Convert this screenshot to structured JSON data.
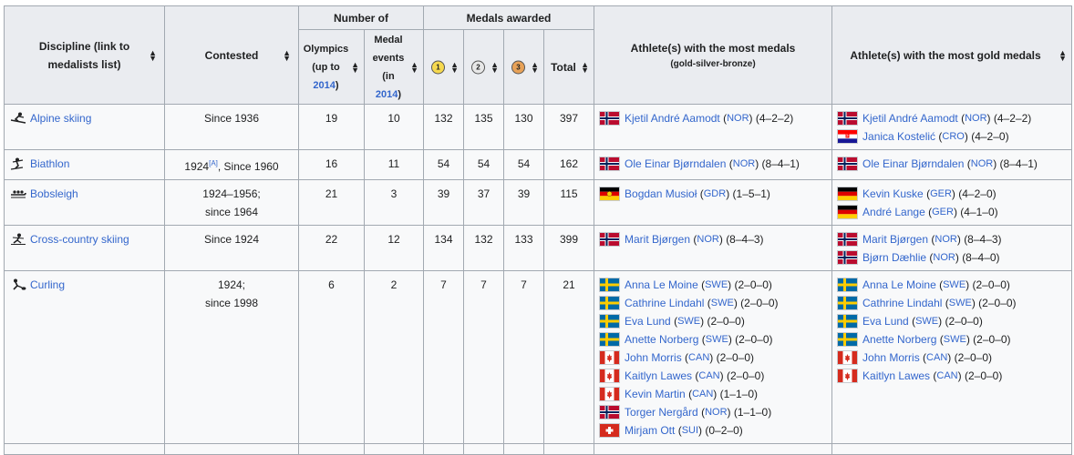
{
  "header": {
    "discipline": "Discipline (link to medalists list)",
    "contested": "Contested",
    "number_of": "Number of",
    "olympics_l1": "Olympics",
    "olympics_l2": "(up to",
    "olympics_year": "2014",
    "olympics_close": ")",
    "events_l1": "Medal",
    "events_l2": "events",
    "events_l3": "(in",
    "events_year": "2014",
    "events_close": ")",
    "medals_awarded": "Medals awarded",
    "gold_label": "1",
    "silver_label": "2",
    "bronze_label": "3",
    "total": "Total",
    "most_medals": "Athlete(s) with the most medals",
    "most_medals_sub": "(gold-silver-bronze)",
    "most_gold": "Athlete(s) with the most gold medals"
  },
  "rows": [
    {
      "discipline": "Alpine skiing",
      "pictogram": "alpine-skiing-pictogram",
      "contested": "Since 1936",
      "olympics": "19",
      "events": "10",
      "gold": "132",
      "silver": "135",
      "bronze": "130",
      "total": "397",
      "most_medals": [
        {
          "flag": "NOR",
          "name": "Kjetil André Aamodt",
          "noc": "NOR",
          "record": "(4–2–2)"
        }
      ],
      "most_gold": [
        {
          "flag": "NOR",
          "name": "Kjetil André Aamodt",
          "noc": "NOR",
          "record": "(4–2–2)"
        },
        {
          "flag": "CRO",
          "name": "Janica Kostelić",
          "noc": "CRO",
          "record": "(4–2–0)"
        }
      ]
    },
    {
      "discipline": "Biathlon",
      "pictogram": "biathlon-pictogram",
      "contested_pre": "1924",
      "contested_note": "[A]",
      "contested_post": ", Since 1960",
      "olympics": "16",
      "events": "11",
      "gold": "54",
      "silver": "54",
      "bronze": "54",
      "total": "162",
      "most_medals": [
        {
          "flag": "NOR",
          "name": "Ole Einar Bjørndalen",
          "noc": "NOR",
          "record": "(8–4–1)"
        }
      ],
      "most_gold": [
        {
          "flag": "NOR",
          "name": "Ole Einar Bjørndalen",
          "noc": "NOR",
          "record": "(8–4–1)"
        }
      ]
    },
    {
      "discipline": "Bobsleigh",
      "pictogram": "bobsleigh-pictogram",
      "contested_l1": "1924–1956;",
      "contested_l2": "since 1964",
      "olympics": "21",
      "events": "3",
      "gold": "39",
      "silver": "37",
      "bronze": "39",
      "total": "115",
      "most_medals": [
        {
          "flag": "GDR",
          "name": "Bogdan Musioł",
          "noc": "GDR",
          "record": "(1–5–1)"
        }
      ],
      "most_gold": [
        {
          "flag": "GER",
          "name": "Kevin Kuske",
          "noc": "GER",
          "record": "(4–2–0)"
        },
        {
          "flag": "GER",
          "name": "André Lange",
          "noc": "GER",
          "record": "(4–1–0)"
        }
      ]
    },
    {
      "discipline": "Cross-country skiing",
      "pictogram": "cross-country-skiing-pictogram",
      "contested": "Since 1924",
      "olympics": "22",
      "events": "12",
      "gold": "134",
      "silver": "132",
      "bronze": "133",
      "total": "399",
      "most_medals": [
        {
          "flag": "NOR",
          "name": "Marit Bjørgen",
          "noc": "NOR",
          "record": "(8–4–3)"
        }
      ],
      "most_gold": [
        {
          "flag": "NOR",
          "name": "Marit Bjørgen",
          "noc": "NOR",
          "record": "(8–4–3)"
        },
        {
          "flag": "NOR",
          "name": "Bjørn Dæhlie",
          "noc": "NOR",
          "record": "(8–4–0)"
        }
      ]
    },
    {
      "discipline": "Curling",
      "pictogram": "curling-pictogram",
      "contested_l1": "1924;",
      "contested_l2": "since 1998",
      "olympics": "6",
      "events": "2",
      "gold": "7",
      "silver": "7",
      "bronze": "7",
      "total": "21",
      "most_medals": [
        {
          "flag": "SWE",
          "name": "Anna Le Moine",
          "noc": "SWE",
          "record": "(2–0–0)"
        },
        {
          "flag": "SWE",
          "name": "Cathrine Lindahl",
          "noc": "SWE",
          "record": "(2–0–0)"
        },
        {
          "flag": "SWE",
          "name": "Eva Lund",
          "noc": "SWE",
          "record": "(2–0–0)"
        },
        {
          "flag": "SWE",
          "name": "Anette Norberg",
          "noc": "SWE",
          "record": "(2–0–0)"
        },
        {
          "flag": "CAN",
          "name": "John Morris",
          "noc": "CAN",
          "record": "(2–0–0)"
        },
        {
          "flag": "CAN",
          "name": "Kaitlyn Lawes",
          "noc": "CAN",
          "record": "(2–0–0)"
        },
        {
          "flag": "CAN",
          "name": "Kevin Martin",
          "noc": "CAN",
          "record": "(1–1–0)"
        },
        {
          "flag": "NOR",
          "name": "Torger Nergård",
          "noc": "NOR",
          "record": "(1–1–0)"
        },
        {
          "flag": "SUI",
          "name": "Mirjam Ott",
          "noc": "SUI",
          "record": "(0–2–0)"
        }
      ],
      "most_gold": [
        {
          "flag": "SWE",
          "name": "Anna Le Moine",
          "noc": "SWE",
          "record": "(2–0–0)"
        },
        {
          "flag": "SWE",
          "name": "Cathrine Lindahl",
          "noc": "SWE",
          "record": "(2–0–0)"
        },
        {
          "flag": "SWE",
          "name": "Eva Lund",
          "noc": "SWE",
          "record": "(2–0–0)"
        },
        {
          "flag": "SWE",
          "name": "Anette Norberg",
          "noc": "SWE",
          "record": "(2–0–0)"
        },
        {
          "flag": "CAN",
          "name": "John Morris",
          "noc": "CAN",
          "record": "(2–0–0)"
        },
        {
          "flag": "CAN",
          "name": "Kaitlyn Lawes",
          "noc": "CAN",
          "record": "(2–0–0)"
        }
      ]
    }
  ],
  "colors": {
    "link": "#3366cc",
    "header_bg": "#eaecf0",
    "border": "#a2a9b1",
    "gold_header": "#ffde00",
    "silver_header": "#c0c0c0",
    "bronze_header": "#cc9966",
    "gold_cell": "#f9f7c6",
    "silver_cell": "#dfe8e6",
    "bronze_cell": "#fde0c0"
  },
  "icons": {
    "sort": "sort-arrows-icon",
    "medal": "medal-badge-icon"
  }
}
